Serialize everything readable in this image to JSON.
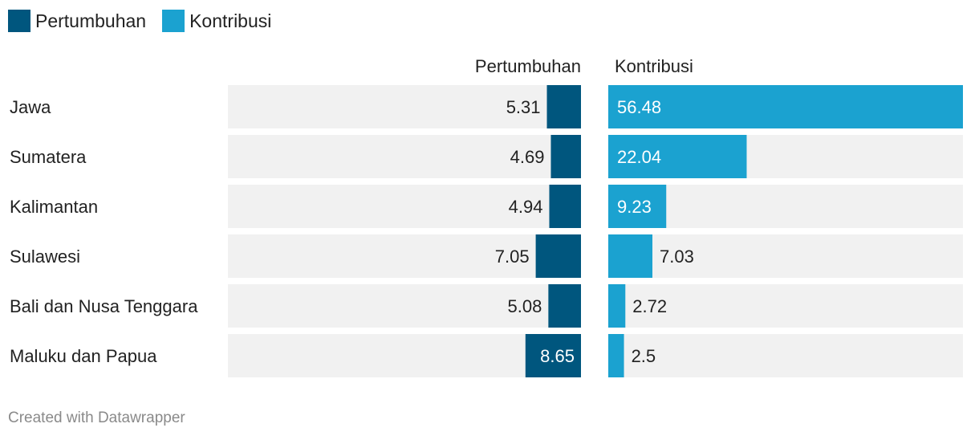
{
  "colors": {
    "growth": "#00567e",
    "contribution": "#1ba2d0",
    "track": "#f1f1f1"
  },
  "legend": [
    {
      "label": "Pertumbuhan",
      "color": "#00567e"
    },
    {
      "label": "Kontribusi",
      "color": "#1ba2d0"
    }
  ],
  "footer": "Created with Datawrapper",
  "chart_data": {
    "type": "bar",
    "title": "",
    "categories": [
      "Jawa",
      "Sumatera",
      "Kalimantan",
      "Sulawesi",
      "Bali dan Nusa Tenggara",
      "Maluku dan Papua"
    ],
    "series": [
      {
        "name": "Pertumbuhan",
        "values": [
          5.31,
          4.69,
          4.94,
          7.05,
          5.08,
          8.65
        ],
        "color": "#00567e",
        "direction": "right-aligned"
      },
      {
        "name": "Kontribusi",
        "values": [
          56.48,
          22.04,
          9.23,
          7.03,
          2.72,
          2.5
        ],
        "color": "#1ba2d0",
        "direction": "left-aligned"
      }
    ],
    "xlim": {
      "Pertumbuhan": [
        0,
        55
      ],
      "Kontribusi": [
        0,
        56.48
      ]
    },
    "grid": false,
    "legend_position": "top-left"
  }
}
